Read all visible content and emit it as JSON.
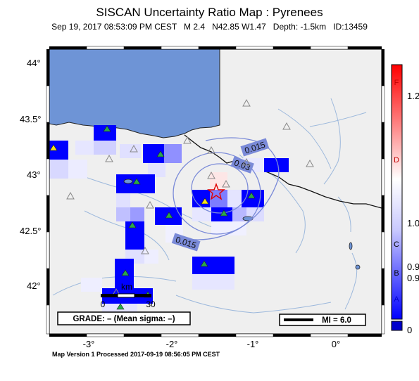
{
  "title": "SISCAN Uncertainty Ratio Map : Pyrenees",
  "subtitle": {
    "date": "Sep 19, 2017 08:53:09 PM CEST",
    "magnitude": "M 2.4",
    "location": "N42.85 W1.47",
    "depth": "Depth: -1.5km",
    "id": "ID:13459"
  },
  "map": {
    "lat_ticks": [
      "44°",
      "43.5°",
      "43°",
      "42.5°",
      "42°"
    ],
    "lon_ticks": [
      "-3°",
      "-2°",
      "-1°",
      "0°"
    ],
    "contour_labels": [
      "0.015",
      "0.03",
      "0.015"
    ],
    "colors": {
      "ocean": "#6e94d6",
      "land": "#efefef",
      "river": "#9cb8dc",
      "contour": "#7a8ad8"
    }
  },
  "scalebar": {
    "label": "km",
    "start": "0",
    "end": "30"
  },
  "grade_box": {
    "text": "GRADE: – (Mean sigma: –)"
  },
  "mi_box": {
    "text": "MI = 6.0"
  },
  "colorbar": {
    "letters": [
      "F",
      "D",
      "C",
      "B",
      "A"
    ],
    "values": [
      "1.2",
      "1.0",
      "0.9",
      "0.9",
      "0"
    ]
  },
  "footer": "Map Version 1 Processed 2017-09-19 08:56:05 PM CEST"
}
